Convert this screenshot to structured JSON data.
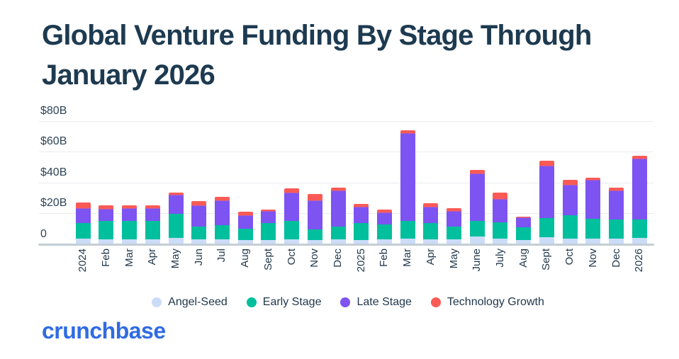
{
  "header": {
    "title_line1": "Global Venture Funding By Stage Through",
    "title_line2": "January 2026"
  },
  "footer": {
    "brand": "crunchbase"
  },
  "colors": {
    "title_text": "#1d3a50",
    "axis_text": "#2e4558",
    "gridline": "#e9ebee",
    "baseline": "#c3ced6",
    "brand_blue": "#2f6be3",
    "angel_seed": "#cbdcf9",
    "early_stage": "#00bf9c",
    "late_stage": "#7d53f2",
    "technology_growth": "#fa5a55",
    "background": "#ffffff"
  },
  "chart_data": {
    "type": "bar",
    "stacked": true,
    "title": "Global Venture Funding By Stage Through January 2026",
    "unit": "billions USD",
    "ylabel": "",
    "xlabel": "",
    "ylim": [
      0,
      80
    ],
    "grid": true,
    "legend_position": "bottom",
    "y_ticks": [
      {
        "label": "$80B",
        "value": 80
      },
      {
        "label": "$60B",
        "value": 60
      },
      {
        "label": "$40B",
        "value": 40
      },
      {
        "label": "$20B",
        "value": 20
      },
      {
        "label": "0",
        "value": 0
      }
    ],
    "categories": [
      "2024",
      "Feb",
      "Mar",
      "Apr",
      "May",
      "Jun",
      "Jul",
      "Aug",
      "Sept",
      "Oct",
      "Nov",
      "Dec",
      "2025",
      "Feb",
      "Mar",
      "Apr",
      "May",
      "June",
      "July",
      "Aug",
      "Sept",
      "Oct",
      "Nov",
      "Dec",
      "2026"
    ],
    "series": [
      {
        "name": "Angel-Seed",
        "color": "#cbdcf9",
        "values": [
          3.5,
          3,
          3,
          3,
          4,
          3,
          3,
          2.5,
          2.5,
          3,
          2.5,
          3,
          2.5,
          3,
          3.5,
          3,
          3,
          5,
          3.5,
          2.5,
          4.5,
          3.5,
          3.5,
          3.5,
          4
        ]
      },
      {
        "name": "Early Stage",
        "color": "#00bf9c",
        "values": [
          10,
          12,
          12,
          12,
          15.5,
          8.5,
          9,
          7.5,
          11,
          12,
          7,
          8.5,
          11,
          9.5,
          11.5,
          10.5,
          8.5,
          10,
          10.5,
          8.5,
          12.5,
          15,
          13,
          12.5,
          12
        ]
      },
      {
        "name": "Late Stage",
        "color": "#7d53f2",
        "values": [
          10,
          8,
          8.5,
          8.5,
          12.5,
          13.5,
          16.5,
          8.5,
          8,
          18.5,
          19,
          23.5,
          10.5,
          8,
          57,
          10.5,
          10,
          31,
          15.5,
          6.5,
          34,
          20,
          25,
          19,
          39.5
        ]
      },
      {
        "name": "Technology Growth",
        "color": "#fa5a55",
        "values": [
          3.5,
          2,
          1.5,
          1.5,
          1.5,
          3,
          2,
          2.5,
          1,
          2.5,
          4,
          1.5,
          2,
          2,
          2,
          2.5,
          2,
          2,
          4,
          0.4,
          3,
          3,
          1.5,
          1.5,
          2
        ]
      }
    ],
    "totals": [
      27,
      25,
      25,
      25,
      33.5,
      28,
      30.5,
      21,
      22.5,
      36,
      32.5,
      36.5,
      26,
      22.5,
      74,
      26.5,
      23.5,
      48,
      33.5,
      17.9,
      54,
      41.5,
      43,
      36.5,
      57.5
    ]
  }
}
